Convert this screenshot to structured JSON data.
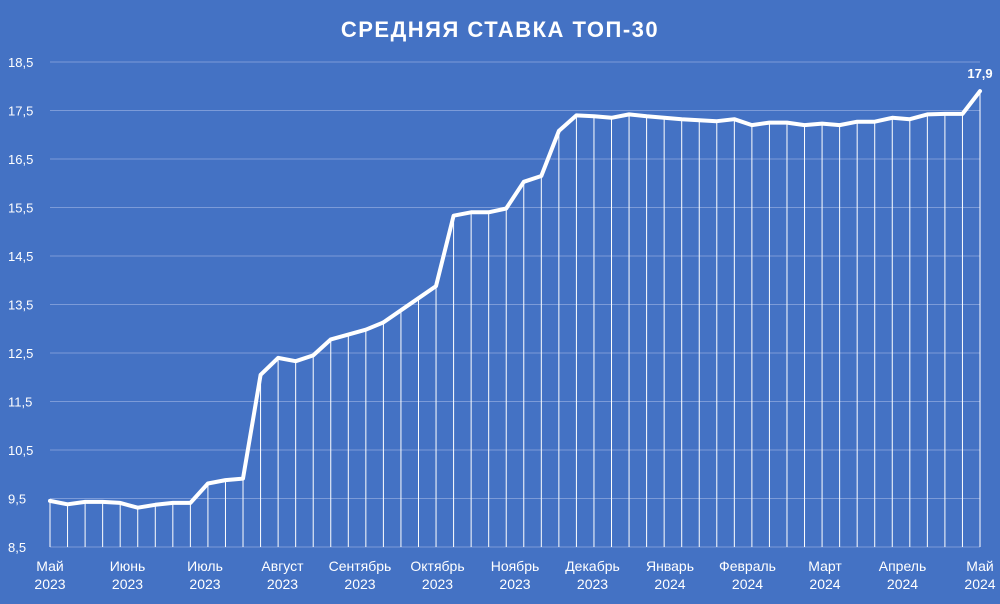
{
  "chart_data": {
    "type": "line",
    "title": "СРЕДНЯЯ СТАВКА ТОП-30",
    "xlabel": "",
    "ylabel": "",
    "ylim": [
      8.5,
      18.5
    ],
    "yticks": [
      "8,5",
      "9,5",
      "10,5",
      "11,5",
      "12,5",
      "13,5",
      "14,5",
      "15,5",
      "16,5",
      "17,5",
      "18,5"
    ],
    "grid": true,
    "x_month_labels": [
      {
        "month": "Май",
        "year": "2023"
      },
      {
        "month": "Июнь",
        "year": "2023"
      },
      {
        "month": "Июль",
        "year": "2023"
      },
      {
        "month": "Август",
        "year": "2023"
      },
      {
        "month": "Сентябрь",
        "year": "2023"
      },
      {
        "month": "Октябрь",
        "year": "2023"
      },
      {
        "month": "Ноябрь",
        "year": "2023"
      },
      {
        "month": "Декабрь",
        "year": "2023"
      },
      {
        "month": "Январь",
        "year": "2024"
      },
      {
        "month": "Февраль",
        "year": "2024"
      },
      {
        "month": "Март",
        "year": "2024"
      },
      {
        "month": "Апрель",
        "year": "2024"
      },
      {
        "month": "Май",
        "year": "2024"
      }
    ],
    "series": [
      {
        "values": [
          9.45,
          9.38,
          9.43,
          9.43,
          9.41,
          9.31,
          9.37,
          9.41,
          9.41,
          9.81,
          9.88,
          9.91,
          12.05,
          12.4,
          12.33,
          12.45,
          12.78,
          12.88,
          12.98,
          13.13,
          13.38,
          13.63,
          13.88,
          15.33,
          15.4,
          15.4,
          15.48,
          16.03,
          16.15,
          17.08,
          17.4,
          17.38,
          17.35,
          17.42,
          17.38,
          17.35,
          17.32,
          17.3,
          17.28,
          17.32,
          17.2,
          17.25,
          17.25,
          17.2,
          17.23,
          17.2,
          17.27,
          17.27,
          17.35,
          17.32,
          17.42,
          17.43,
          17.43,
          17.9
        ]
      }
    ],
    "last_value_label": "17,9",
    "line_color": "#ffffff",
    "background_color": "#4472c4",
    "grid_color": "#7c9bd8"
  }
}
